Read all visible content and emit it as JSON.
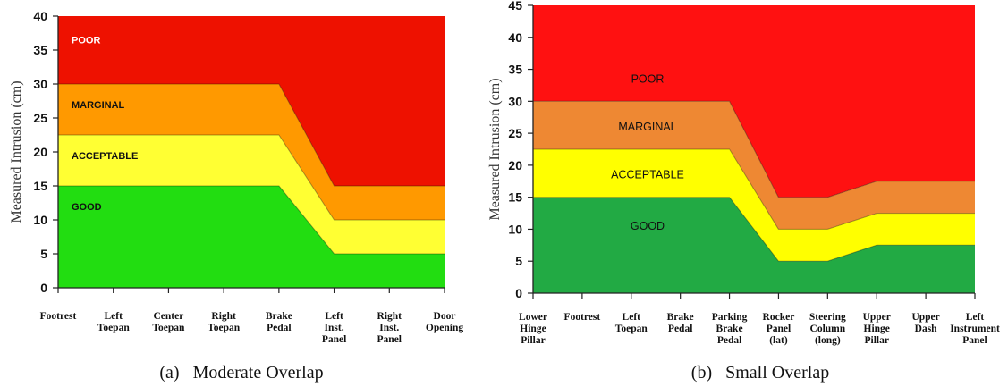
{
  "captions": [
    "(a)   Moderate Overlap",
    "(b)   Small Overlap"
  ],
  "chart_data": [
    {
      "type": "area",
      "title": "",
      "caption": "(a)   Moderate Overlap",
      "ylabel": "Measured Intrusion (cm)",
      "xlabel": "",
      "ylim": [
        0,
        40
      ],
      "yticks": [
        0,
        5,
        10,
        15,
        20,
        25,
        30,
        35,
        40
      ],
      "categories": [
        [
          "Footrest"
        ],
        [
          "Left",
          "Toepan"
        ],
        [
          "Center",
          "Toepan"
        ],
        [
          "Right",
          "Toepan"
        ],
        [
          "Brake",
          "Pedal"
        ],
        [
          "Left",
          "Inst.",
          "Panel"
        ],
        [
          "Right",
          "Inst.",
          "Panel"
        ],
        [
          "Door",
          "Opening"
        ]
      ],
      "series": [
        {
          "name": "GOOD",
          "values": [
            15,
            15,
            15,
            15,
            15,
            5,
            5,
            5
          ]
        },
        {
          "name": "ACCEPTABLE",
          "values": [
            22.5,
            22.5,
            22.5,
            22.5,
            22.5,
            10,
            10,
            10
          ]
        },
        {
          "name": "MARGINAL",
          "values": [
            30,
            30,
            30,
            30,
            30,
            15,
            15,
            15
          ]
        },
        {
          "name": "POOR",
          "values": [
            40,
            40,
            40,
            40,
            40,
            40,
            40,
            40
          ]
        }
      ],
      "band_labels": [
        {
          "text": "POOR",
          "y": 36.5
        },
        {
          "text": "MARGINAL",
          "y": 27
        },
        {
          "text": "ACCEPTABLE",
          "y": 19.5
        },
        {
          "text": "GOOD",
          "y": 12
        }
      ],
      "colors": {
        "GOOD": "#22dd11",
        "ACCEPTABLE": "#ffff33",
        "MARGINAL": "#ff9900",
        "POOR": "#ee1100"
      },
      "label_colors": {
        "POOR": "#ffffff",
        "MARGINAL": "#111111",
        "ACCEPTABLE": "#111111",
        "GOOD": "#111111"
      }
    },
    {
      "type": "area",
      "title": "",
      "caption": "(b)   Small Overlap",
      "ylabel": "Measured Intrusion (cm)",
      "xlabel": "",
      "ylim": [
        0,
        45
      ],
      "yticks": [
        0,
        5,
        10,
        15,
        20,
        25,
        30,
        35,
        40,
        45
      ],
      "categories": [
        [
          "Lower",
          "Hinge",
          "Pillar"
        ],
        [
          "Footrest"
        ],
        [
          "Left",
          "Toepan"
        ],
        [
          "Brake",
          "Pedal"
        ],
        [
          "Parking",
          "Brake",
          "Pedal"
        ],
        [
          "Rocker",
          "Panel",
          "(lat)"
        ],
        [
          "Steering",
          "Column",
          "(long)"
        ],
        [
          "Upper",
          "Hinge",
          "Pillar"
        ],
        [
          "Upper",
          "Dash"
        ],
        [
          "Left",
          "Instrument",
          "Panel"
        ]
      ],
      "series": [
        {
          "name": "GOOD",
          "values": [
            15,
            15,
            15,
            15,
            15,
            5,
            5,
            7.5,
            7.5,
            7.5
          ]
        },
        {
          "name": "ACCEPTABLE",
          "values": [
            22.5,
            22.5,
            22.5,
            22.5,
            22.5,
            10,
            10,
            12.5,
            12.5,
            12.5
          ]
        },
        {
          "name": "MARGINAL",
          "values": [
            30,
            30,
            30,
            30,
            30,
            15,
            15,
            17.5,
            17.5,
            17.5
          ]
        },
        {
          "name": "POOR",
          "values": [
            45,
            45,
            45,
            45,
            45,
            45,
            45,
            45,
            45,
            45
          ]
        }
      ],
      "band_labels": [
        {
          "text": "POOR",
          "y": 33.5
        },
        {
          "text": "MARGINAL",
          "y": 26
        },
        {
          "text": "ACCEPTABLE",
          "y": 18.5
        },
        {
          "text": "GOOD",
          "y": 10.5
        }
      ],
      "colors": {
        "GOOD": "#22aa44",
        "ACCEPTABLE": "#ffff00",
        "MARGINAL": "#ee8833",
        "POOR": "#ff1111"
      },
      "label_colors": {
        "POOR": "#111111",
        "MARGINAL": "#111111",
        "ACCEPTABLE": "#111111",
        "GOOD": "#111111"
      }
    }
  ]
}
